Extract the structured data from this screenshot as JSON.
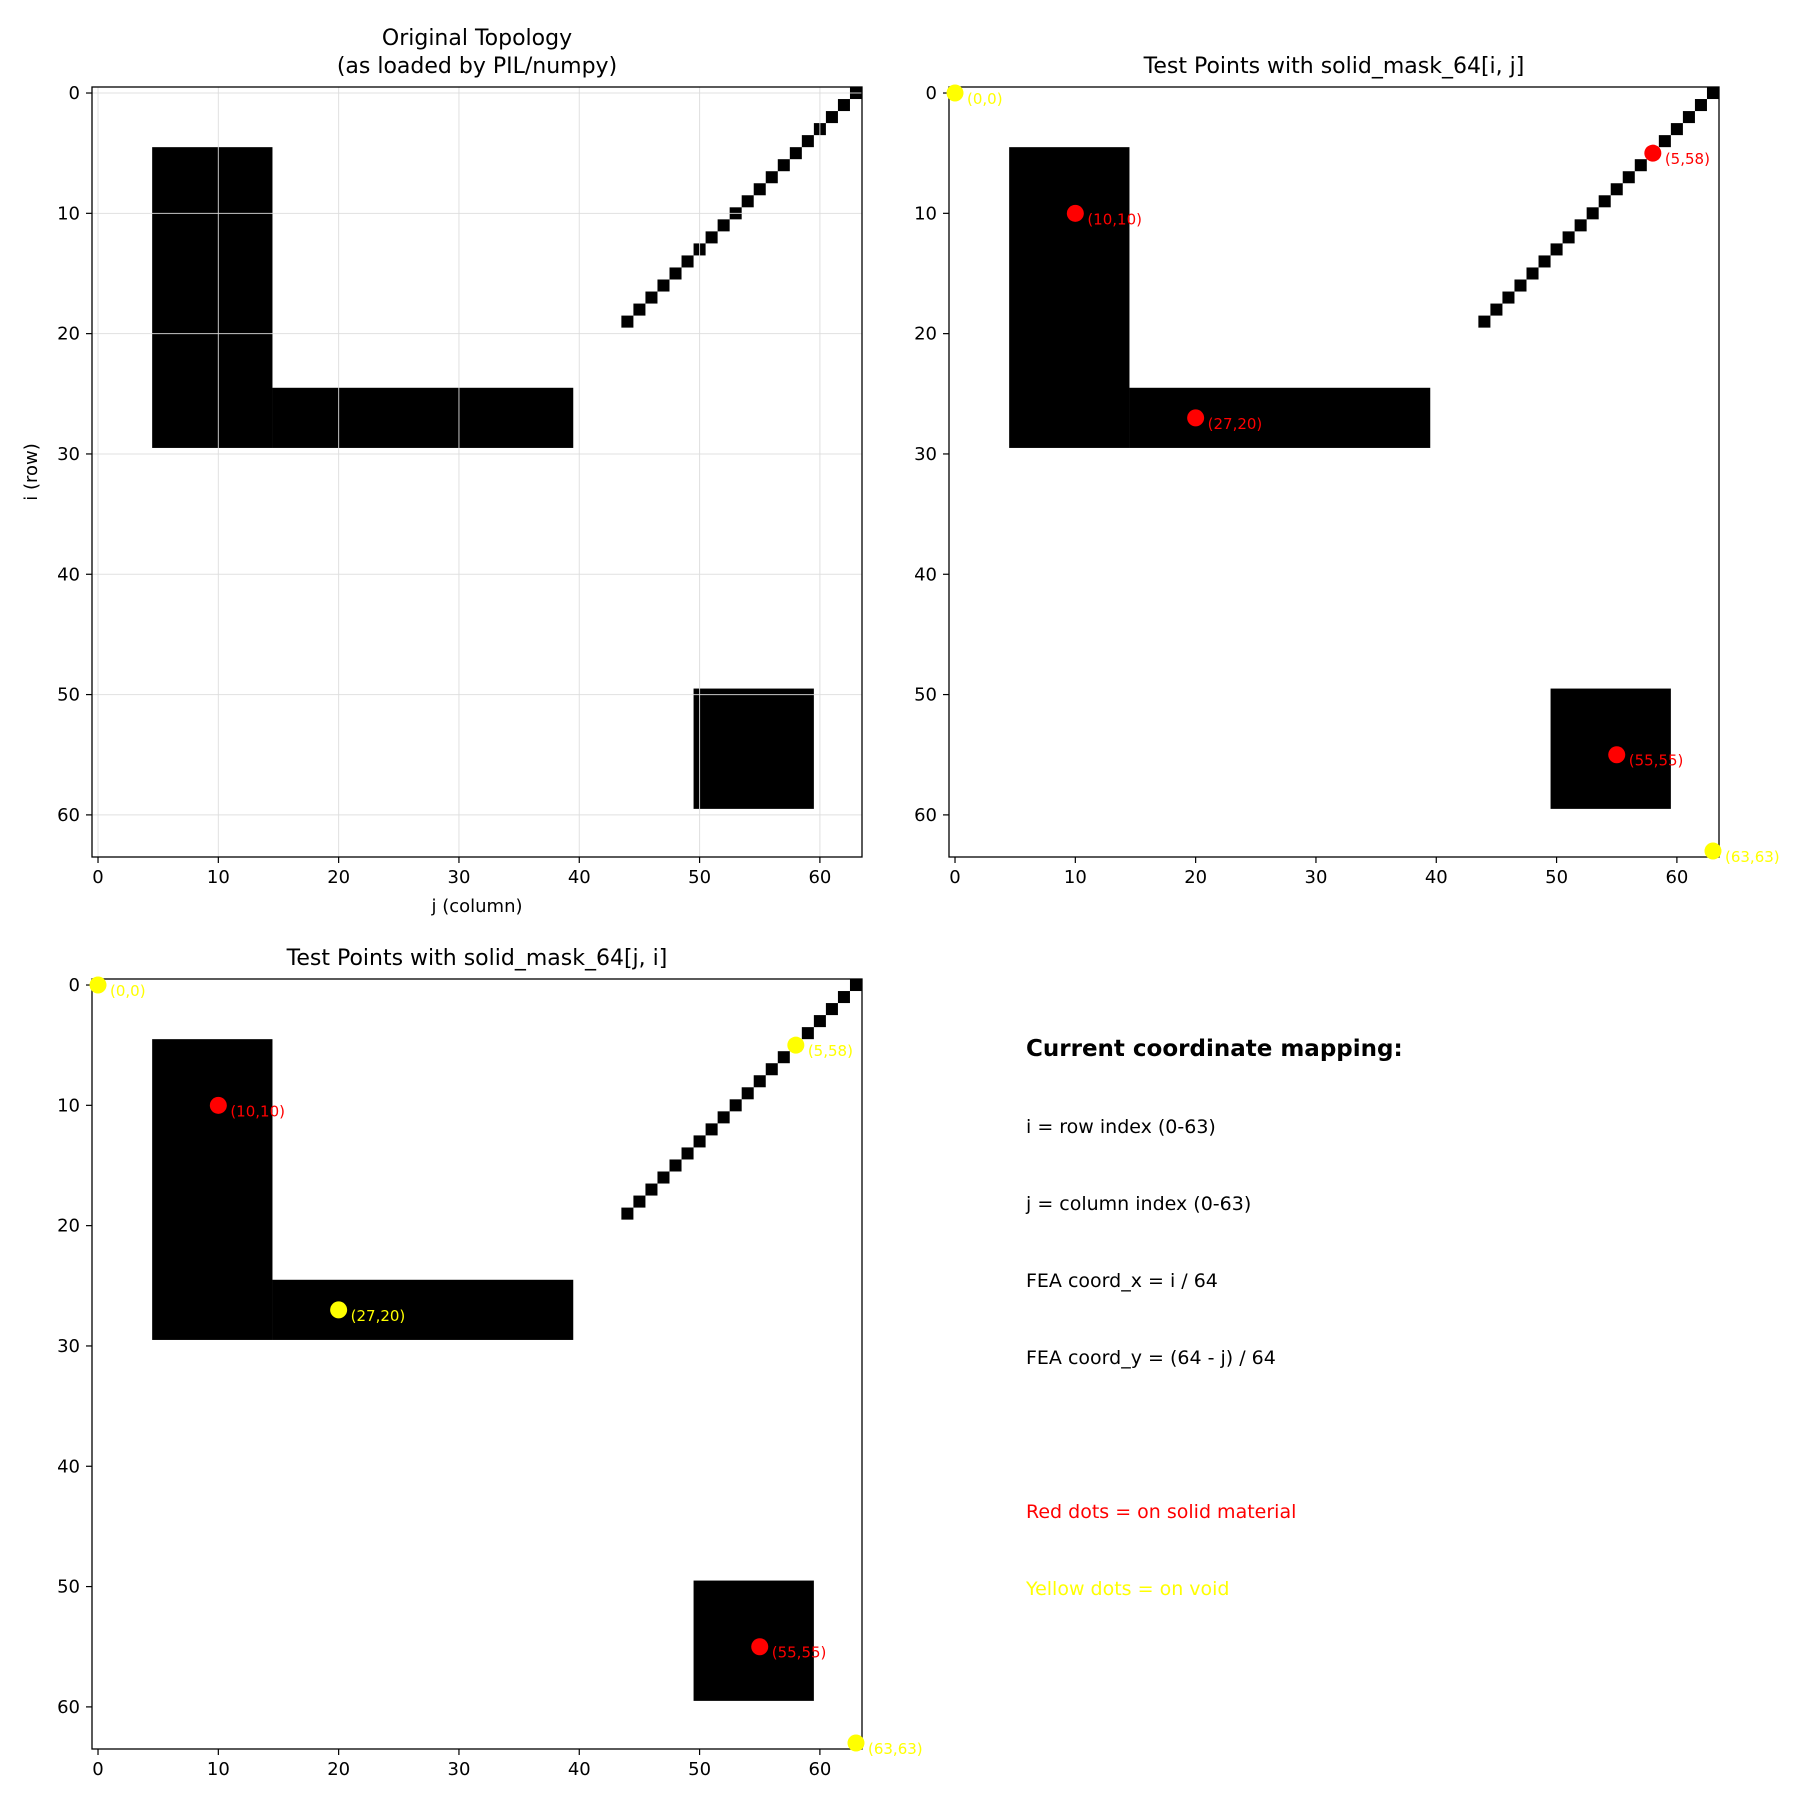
{
  "chart_data": [
    {
      "type": "heatmap",
      "title": "Original Topology\n(as loaded by PIL/numpy)",
      "xlabel": "j (column)",
      "ylabel": "i (row)",
      "grid": true,
      "xlim": [
        0,
        63
      ],
      "ylim": [
        63,
        0
      ],
      "xticks": [
        0,
        10,
        20,
        30,
        40,
        50,
        60
      ],
      "yticks": [
        0,
        10,
        20,
        30,
        40,
        50,
        60
      ],
      "points": []
    },
    {
      "type": "heatmap",
      "title": "Test Points with solid_mask_64[i, j]",
      "xlabel": "",
      "ylabel": "",
      "grid": false,
      "xlim": [
        0,
        63
      ],
      "ylim": [
        63,
        0
      ],
      "xticks": [
        0,
        10,
        20,
        30,
        40,
        50,
        60
      ],
      "yticks": [
        0,
        10,
        20,
        30,
        40,
        50,
        60
      ],
      "points": [
        {
          "i": 0,
          "j": 0,
          "label": "(0,0)",
          "status": "void"
        },
        {
          "i": 10,
          "j": 10,
          "label": "(10,10)",
          "status": "solid"
        },
        {
          "i": 27,
          "j": 20,
          "label": "(27,20)",
          "status": "solid"
        },
        {
          "i": 5,
          "j": 58,
          "label": "(5,58)",
          "status": "solid"
        },
        {
          "i": 55,
          "j": 55,
          "label": "(55,55)",
          "status": "solid"
        },
        {
          "i": 63,
          "j": 63,
          "label": "(63,63)",
          "status": "void"
        }
      ]
    },
    {
      "type": "heatmap",
      "title": "Test Points with solid_mask_64[j, i]",
      "xlabel": "",
      "ylabel": "",
      "grid": false,
      "xlim": [
        0,
        63
      ],
      "ylim": [
        63,
        0
      ],
      "xticks": [
        0,
        10,
        20,
        30,
        40,
        50,
        60
      ],
      "yticks": [
        0,
        10,
        20,
        30,
        40,
        50,
        60
      ],
      "points": [
        {
          "i": 0,
          "j": 0,
          "label": "(0,0)",
          "status": "void"
        },
        {
          "i": 10,
          "j": 10,
          "label": "(10,10)",
          "status": "solid"
        },
        {
          "i": 27,
          "j": 20,
          "label": "(27,20)",
          "status": "void"
        },
        {
          "i": 5,
          "j": 58,
          "label": "(5,58)",
          "status": "void"
        },
        {
          "i": 55,
          "j": 55,
          "label": "(55,55)",
          "status": "solid"
        },
        {
          "i": 63,
          "j": 63,
          "label": "(63,63)",
          "status": "void"
        }
      ]
    }
  ],
  "topology": {
    "grid_size": 64,
    "rects": [
      {
        "name": "l-vertical-bar",
        "row_start": 5,
        "row_end": 29,
        "col_start": 5,
        "col_end": 14
      },
      {
        "name": "l-horizontal-bar",
        "row_start": 25,
        "row_end": 29,
        "col_start": 15,
        "col_end": 39
      },
      {
        "name": "square-block",
        "row_start": 50,
        "row_end": 59,
        "col_start": 50,
        "col_end": 59
      }
    ],
    "diagonal_cells": [
      [
        0,
        63
      ],
      [
        1,
        62
      ],
      [
        2,
        61
      ],
      [
        3,
        60
      ],
      [
        4,
        59
      ],
      [
        5,
        58
      ],
      [
        6,
        57
      ],
      [
        7,
        56
      ],
      [
        8,
        55
      ],
      [
        9,
        54
      ],
      [
        10,
        53
      ],
      [
        11,
        52
      ],
      [
        12,
        51
      ],
      [
        13,
        50
      ],
      [
        14,
        49
      ],
      [
        15,
        48
      ],
      [
        16,
        47
      ],
      [
        17,
        46
      ],
      [
        18,
        45
      ],
      [
        19,
        44
      ]
    ],
    "solid_color": "#000000",
    "void_color": "#ffffff"
  },
  "colors": {
    "solid_point": "#ff0000",
    "void_point": "#ffff00",
    "grid": "#dddddd"
  },
  "info": {
    "heading": "Current coordinate mapping:",
    "lines": [
      "i = row index (0-63)",
      "j = column index (0-63)",
      "FEA coord_x = i / 64",
      "FEA coord_y = (64 - j) / 64"
    ],
    "legend_red": "Red dots = on solid material",
    "legend_yellow": "Yellow dots = on void"
  }
}
